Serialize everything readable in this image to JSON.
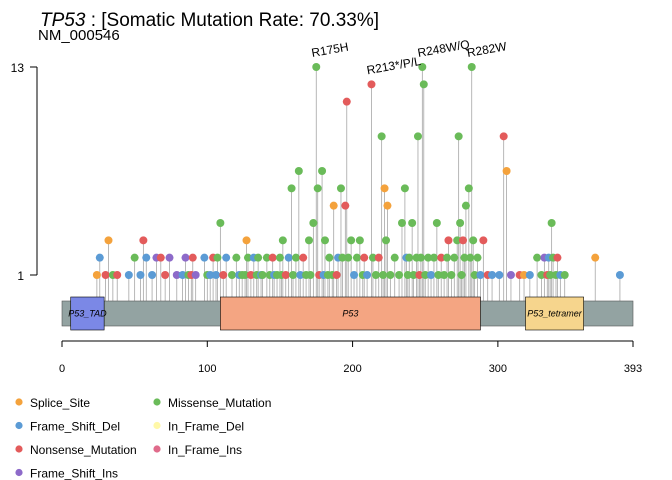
{
  "chart_data": {
    "type": "lollipop",
    "title_gene": "TP53",
    "title_rest": " : [Somatic Mutation Rate: 70.33%]",
    "subtitle": "NM_000546",
    "x_ticks": [
      "0",
      "100",
      "200",
      "300",
      "393"
    ],
    "xlim": [
      0,
      393
    ],
    "y_ticks": [
      "13",
      "1"
    ],
    "ylim": [
      1,
      13
    ],
    "protein_length": 393,
    "domains": [
      {
        "label": "P53_TAD",
        "start": 6,
        "end": 29,
        "color": "#7b88e6"
      },
      {
        "label": "P53",
        "start": 109,
        "end": 288,
        "color": "#f4a582"
      },
      {
        "label": "P53_tetramer",
        "start": 319,
        "end": 359,
        "color": "#f6d58d"
      }
    ],
    "backbone_color": "#93a3a2",
    "mutation_colors": {
      "Splice_Site": "#f4a23c",
      "Frame_Shift_Del": "#5b9bd5",
      "Nonsense_Mutation": "#e35b5b",
      "Frame_Shift_Ins": "#8d6ac9",
      "Missense_Mutation": "#6abb59",
      "In_Frame_Del": "#fff8a8",
      "In_Frame_Ins": "#e06b8b"
    },
    "legend": [
      {
        "label": "Splice_Site",
        "type": "Splice_Site"
      },
      {
        "label": "Frame_Shift_Del",
        "type": "Frame_Shift_Del"
      },
      {
        "label": "Nonsense_Mutation",
        "type": "Nonsense_Mutation"
      },
      {
        "label": "Frame_Shift_Ins",
        "type": "Frame_Shift_Ins"
      },
      {
        "label": "Missense_Mutation",
        "type": "Missense_Mutation"
      },
      {
        "label": "In_Frame_Del",
        "type": "In_Frame_Del"
      },
      {
        "label": "In_Frame_Ins",
        "type": "In_Frame_Ins"
      }
    ],
    "labeled_mutations": [
      {
        "label": "R175H",
        "pos": 175
      },
      {
        "label": "R213*/P/L",
        "pos": 213
      },
      {
        "label": "R248W/Q",
        "pos": 248
      },
      {
        "label": "R282W",
        "pos": 282
      }
    ],
    "mutations": [
      {
        "pos": 24,
        "count": 1,
        "type": "Splice_Site"
      },
      {
        "pos": 26,
        "count": 2,
        "type": "Frame_Shift_Del"
      },
      {
        "pos": 30,
        "count": 1,
        "type": "Nonsense_Mutation"
      },
      {
        "pos": 32,
        "count": 3,
        "type": "Splice_Site"
      },
      {
        "pos": 35,
        "count": 1,
        "type": "Missense_Mutation"
      },
      {
        "pos": 38,
        "count": 1,
        "type": "Nonsense_Mutation"
      },
      {
        "pos": 46,
        "count": 1,
        "type": "Frame_Shift_Del"
      },
      {
        "pos": 50,
        "count": 2,
        "type": "Missense_Mutation"
      },
      {
        "pos": 54,
        "count": 1,
        "type": "Frame_Shift_Del"
      },
      {
        "pos": 56,
        "count": 3,
        "type": "Nonsense_Mutation"
      },
      {
        "pos": 58,
        "count": 2,
        "type": "Frame_Shift_Del"
      },
      {
        "pos": 62,
        "count": 1,
        "type": "Frame_Shift_Del"
      },
      {
        "pos": 65,
        "count": 2,
        "type": "Frame_Shift_Ins"
      },
      {
        "pos": 68,
        "count": 2,
        "type": "Nonsense_Mutation"
      },
      {
        "pos": 71,
        "count": 1,
        "type": "Nonsense_Mutation"
      },
      {
        "pos": 74,
        "count": 2,
        "type": "Frame_Shift_Ins"
      },
      {
        "pos": 79,
        "count": 1,
        "type": "Frame_Shift_Ins"
      },
      {
        "pos": 83,
        "count": 1,
        "type": "Frame_Shift_Del"
      },
      {
        "pos": 85,
        "count": 2,
        "type": "Frame_Shift_Ins"
      },
      {
        "pos": 87,
        "count": 1,
        "type": "Missense_Mutation"
      },
      {
        "pos": 89,
        "count": 1,
        "type": "Nonsense_Mutation"
      },
      {
        "pos": 90,
        "count": 2,
        "type": "Nonsense_Mutation"
      },
      {
        "pos": 92,
        "count": 1,
        "type": "Frame_Shift_Ins"
      },
      {
        "pos": 98,
        "count": 2,
        "type": "Frame_Shift_Del"
      },
      {
        "pos": 100,
        "count": 1,
        "type": "Missense_Mutation"
      },
      {
        "pos": 102,
        "count": 1,
        "type": "Frame_Shift_Del"
      },
      {
        "pos": 104,
        "count": 2,
        "type": "Nonsense_Mutation"
      },
      {
        "pos": 106,
        "count": 1,
        "type": "Frame_Shift_Del"
      },
      {
        "pos": 107,
        "count": 2,
        "type": "Missense_Mutation"
      },
      {
        "pos": 109,
        "count": 4,
        "type": "Missense_Mutation"
      },
      {
        "pos": 111,
        "count": 1,
        "type": "Nonsense_Mutation"
      },
      {
        "pos": 113,
        "count": 2,
        "type": "Frame_Shift_Del"
      },
      {
        "pos": 117,
        "count": 1,
        "type": "Missense_Mutation"
      },
      {
        "pos": 120,
        "count": 2,
        "type": "Missense_Mutation"
      },
      {
        "pos": 122,
        "count": 1,
        "type": "Frame_Shift_Del"
      },
      {
        "pos": 124,
        "count": 1,
        "type": "Missense_Mutation"
      },
      {
        "pos": 126,
        "count": 1,
        "type": "Missense_Mutation"
      },
      {
        "pos": 127,
        "count": 3,
        "type": "Splice_Site"
      },
      {
        "pos": 128,
        "count": 2,
        "type": "Missense_Mutation"
      },
      {
        "pos": 130,
        "count": 1,
        "type": "Nonsense_Mutation"
      },
      {
        "pos": 132,
        "count": 2,
        "type": "Frame_Shift_Del"
      },
      {
        "pos": 134,
        "count": 1,
        "type": "Missense_Mutation"
      },
      {
        "pos": 135,
        "count": 2,
        "type": "Missense_Mutation"
      },
      {
        "pos": 137,
        "count": 1,
        "type": "Frame_Shift_Del"
      },
      {
        "pos": 138,
        "count": 1,
        "type": "Missense_Mutation"
      },
      {
        "pos": 141,
        "count": 2,
        "type": "Missense_Mutation"
      },
      {
        "pos": 143,
        "count": 1,
        "type": "Missense_Mutation"
      },
      {
        "pos": 145,
        "count": 2,
        "type": "Nonsense_Mutation"
      },
      {
        "pos": 146,
        "count": 1,
        "type": "Frame_Shift_Del"
      },
      {
        "pos": 148,
        "count": 1,
        "type": "Missense_Mutation"
      },
      {
        "pos": 150,
        "count": 2,
        "type": "Missense_Mutation"
      },
      {
        "pos": 151,
        "count": 1,
        "type": "Missense_Mutation"
      },
      {
        "pos": 152,
        "count": 3,
        "type": "Missense_Mutation"
      },
      {
        "pos": 154,
        "count": 1,
        "type": "Nonsense_Mutation"
      },
      {
        "pos": 156,
        "count": 2,
        "type": "Frame_Shift_Del"
      },
      {
        "pos": 158,
        "count": 6,
        "type": "Missense_Mutation"
      },
      {
        "pos": 159,
        "count": 1,
        "type": "Missense_Mutation"
      },
      {
        "pos": 161,
        "count": 2,
        "type": "Missense_Mutation"
      },
      {
        "pos": 163,
        "count": 7,
        "type": "Missense_Mutation"
      },
      {
        "pos": 164,
        "count": 1,
        "type": "Frame_Shift_Del"
      },
      {
        "pos": 166,
        "count": 2,
        "type": "Nonsense_Mutation"
      },
      {
        "pos": 168,
        "count": 1,
        "type": "Missense_Mutation"
      },
      {
        "pos": 170,
        "count": 3,
        "type": "Missense_Mutation"
      },
      {
        "pos": 171,
        "count": 1,
        "type": "Missense_Mutation"
      },
      {
        "pos": 173,
        "count": 4,
        "type": "Missense_Mutation"
      },
      {
        "pos": 175,
        "count": 13,
        "type": "Missense_Mutation"
      },
      {
        "pos": 176,
        "count": 6,
        "type": "Missense_Mutation"
      },
      {
        "pos": 177,
        "count": 1,
        "type": "Nonsense_Mutation"
      },
      {
        "pos": 179,
        "count": 7,
        "type": "Missense_Mutation"
      },
      {
        "pos": 180,
        "count": 1,
        "type": "Frame_Shift_Del"
      },
      {
        "pos": 181,
        "count": 3,
        "type": "Missense_Mutation"
      },
      {
        "pos": 183,
        "count": 1,
        "type": "Missense_Mutation"
      },
      {
        "pos": 184,
        "count": 2,
        "type": "Missense_Mutation"
      },
      {
        "pos": 186,
        "count": 1,
        "type": "Missense_Mutation"
      },
      {
        "pos": 187,
        "count": 5,
        "type": "Splice_Site"
      },
      {
        "pos": 189,
        "count": 1,
        "type": "Nonsense_Mutation"
      },
      {
        "pos": 190,
        "count": 2,
        "type": "Frame_Shift_Del"
      },
      {
        "pos": 192,
        "count": 6,
        "type": "Missense_Mutation"
      },
      {
        "pos": 193,
        "count": 2,
        "type": "Missense_Mutation"
      },
      {
        "pos": 195,
        "count": 5,
        "type": "Nonsense_Mutation"
      },
      {
        "pos": 196,
        "count": 11,
        "type": "Nonsense_Mutation"
      },
      {
        "pos": 197,
        "count": 2,
        "type": "Missense_Mutation"
      },
      {
        "pos": 199,
        "count": 3,
        "type": "Missense_Mutation"
      },
      {
        "pos": 201,
        "count": 1,
        "type": "Frame_Shift_Del"
      },
      {
        "pos": 203,
        "count": 2,
        "type": "Missense_Mutation"
      },
      {
        "pos": 205,
        "count": 3,
        "type": "Missense_Mutation"
      },
      {
        "pos": 207,
        "count": 1,
        "type": "Missense_Mutation"
      },
      {
        "pos": 208,
        "count": 2,
        "type": "Nonsense_Mutation"
      },
      {
        "pos": 210,
        "count": 1,
        "type": "Frame_Shift_Del"
      },
      {
        "pos": 213,
        "count": 12,
        "type": "Nonsense_Mutation"
      },
      {
        "pos": 214,
        "count": 2,
        "type": "Missense_Mutation"
      },
      {
        "pos": 216,
        "count": 1,
        "type": "Missense_Mutation"
      },
      {
        "pos": 218,
        "count": 2,
        "type": "Nonsense_Mutation"
      },
      {
        "pos": 220,
        "count": 9,
        "type": "Missense_Mutation"
      },
      {
        "pos": 221,
        "count": 1,
        "type": "Missense_Mutation"
      },
      {
        "pos": 222,
        "count": 6,
        "type": "Splice_Site"
      },
      {
        "pos": 223,
        "count": 3,
        "type": "Missense_Mutation"
      },
      {
        "pos": 224,
        "count": 5,
        "type": "Splice_Site"
      },
      {
        "pos": 226,
        "count": 1,
        "type": "Missense_Mutation"
      },
      {
        "pos": 229,
        "count": 2,
        "type": "Missense_Mutation"
      },
      {
        "pos": 232,
        "count": 1,
        "type": "Missense_Mutation"
      },
      {
        "pos": 234,
        "count": 4,
        "type": "Missense_Mutation"
      },
      {
        "pos": 236,
        "count": 6,
        "type": "Missense_Mutation"
      },
      {
        "pos": 237,
        "count": 2,
        "type": "Frame_Shift_Del"
      },
      {
        "pos": 238,
        "count": 1,
        "type": "Missense_Mutation"
      },
      {
        "pos": 239,
        "count": 2,
        "type": "Missense_Mutation"
      },
      {
        "pos": 241,
        "count": 4,
        "type": "Missense_Mutation"
      },
      {
        "pos": 242,
        "count": 1,
        "type": "Missense_Mutation"
      },
      {
        "pos": 244,
        "count": 2,
        "type": "Missense_Mutation"
      },
      {
        "pos": 245,
        "count": 9,
        "type": "Missense_Mutation"
      },
      {
        "pos": 246,
        "count": 1,
        "type": "Nonsense_Mutation"
      },
      {
        "pos": 247,
        "count": 2,
        "type": "Missense_Mutation"
      },
      {
        "pos": 248,
        "count": 13,
        "type": "Missense_Mutation"
      },
      {
        "pos": 249,
        "count": 12,
        "type": "Missense_Mutation"
      },
      {
        "pos": 250,
        "count": 1,
        "type": "Missense_Mutation"
      },
      {
        "pos": 252,
        "count": 2,
        "type": "Missense_Mutation"
      },
      {
        "pos": 254,
        "count": 1,
        "type": "Frame_Shift_Del"
      },
      {
        "pos": 256,
        "count": 2,
        "type": "Missense_Mutation"
      },
      {
        "pos": 258,
        "count": 4,
        "type": "Missense_Mutation"
      },
      {
        "pos": 259,
        "count": 1,
        "type": "Missense_Mutation"
      },
      {
        "pos": 261,
        "count": 2,
        "type": "Nonsense_Mutation"
      },
      {
        "pos": 263,
        "count": 1,
        "type": "Missense_Mutation"
      },
      {
        "pos": 265,
        "count": 2,
        "type": "Missense_Mutation"
      },
      {
        "pos": 266,
        "count": 3,
        "type": "Nonsense_Mutation"
      },
      {
        "pos": 268,
        "count": 1,
        "type": "Missense_Mutation"
      },
      {
        "pos": 270,
        "count": 2,
        "type": "Missense_Mutation"
      },
      {
        "pos": 272,
        "count": 3,
        "type": "Missense_Mutation"
      },
      {
        "pos": 273,
        "count": 9,
        "type": "Missense_Mutation"
      },
      {
        "pos": 274,
        "count": 4,
        "type": "Missense_Mutation"
      },
      {
        "pos": 275,
        "count": 1,
        "type": "Missense_Mutation"
      },
      {
        "pos": 276,
        "count": 3,
        "type": "Nonsense_Mutation"
      },
      {
        "pos": 277,
        "count": 2,
        "type": "Missense_Mutation"
      },
      {
        "pos": 278,
        "count": 5,
        "type": "Missense_Mutation"
      },
      {
        "pos": 280,
        "count": 6,
        "type": "Missense_Mutation"
      },
      {
        "pos": 281,
        "count": 2,
        "type": "Missense_Mutation"
      },
      {
        "pos": 282,
        "count": 13,
        "type": "Missense_Mutation"
      },
      {
        "pos": 283,
        "count": 3,
        "type": "Missense_Mutation"
      },
      {
        "pos": 284,
        "count": 1,
        "type": "Missense_Mutation"
      },
      {
        "pos": 286,
        "count": 2,
        "type": "Missense_Mutation"
      },
      {
        "pos": 288,
        "count": 1,
        "type": "Frame_Shift_Del"
      },
      {
        "pos": 290,
        "count": 3,
        "type": "Nonsense_Mutation"
      },
      {
        "pos": 293,
        "count": 1,
        "type": "Nonsense_Mutation"
      },
      {
        "pos": 296,
        "count": 1,
        "type": "Frame_Shift_Del"
      },
      {
        "pos": 301,
        "count": 1,
        "type": "Frame_Shift_Del"
      },
      {
        "pos": 304,
        "count": 9,
        "type": "Nonsense_Mutation"
      },
      {
        "pos": 306,
        "count": 7,
        "type": "Splice_Site"
      },
      {
        "pos": 309,
        "count": 1,
        "type": "Frame_Shift_Ins"
      },
      {
        "pos": 315,
        "count": 1,
        "type": "Nonsense_Mutation"
      },
      {
        "pos": 318,
        "count": 1,
        "type": "Splice_Site"
      },
      {
        "pos": 322,
        "count": 1,
        "type": "Frame_Shift_Del"
      },
      {
        "pos": 327,
        "count": 2,
        "type": "Missense_Mutation"
      },
      {
        "pos": 330,
        "count": 1,
        "type": "Missense_Mutation"
      },
      {
        "pos": 332,
        "count": 2,
        "type": "Frame_Shift_Ins"
      },
      {
        "pos": 334,
        "count": 1,
        "type": "Nonsense_Mutation"
      },
      {
        "pos": 335,
        "count": 2,
        "type": "Frame_Shift_Del"
      },
      {
        "pos": 336,
        "count": 1,
        "type": "Missense_Mutation"
      },
      {
        "pos": 337,
        "count": 4,
        "type": "Missense_Mutation"
      },
      {
        "pos": 338,
        "count": 2,
        "type": "Missense_Mutation"
      },
      {
        "pos": 340,
        "count": 1,
        "type": "Missense_Mutation"
      },
      {
        "pos": 341,
        "count": 2,
        "type": "Nonsense_Mutation"
      },
      {
        "pos": 343,
        "count": 1,
        "type": "Frame_Shift_Del"
      },
      {
        "pos": 346,
        "count": 1,
        "type": "Missense_Mutation"
      },
      {
        "pos": 367,
        "count": 2,
        "type": "Splice_Site"
      },
      {
        "pos": 384,
        "count": 1,
        "type": "Frame_Shift_Del"
      }
    ]
  }
}
